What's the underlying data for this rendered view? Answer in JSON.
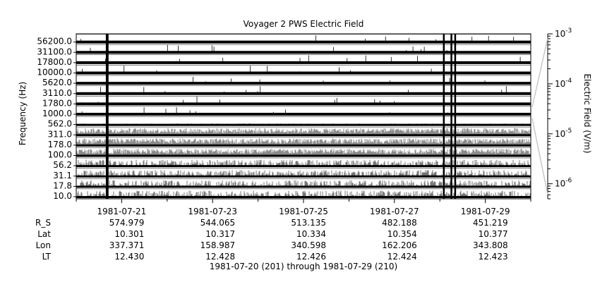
{
  "chart_data": {
    "type": "line",
    "title": "Voyager 2 PWS Electric Field",
    "ylabel": "Frequency (Hz)",
    "colorbar_label": "Electric Field (V/m)",
    "colorbar_scale": "log",
    "colorbar_range": [
      5e-07,
      0.001
    ],
    "colorbar_ticks": [
      {
        "value": 0.001,
        "mantissa": "10",
        "exp": "-3"
      },
      {
        "value": 0.0001,
        "mantissa": "10",
        "exp": "-4"
      },
      {
        "value": 1e-05,
        "mantissa": "10",
        "exp": "-5"
      },
      {
        "value": 1e-06,
        "mantissa": "10",
        "exp": "-6"
      }
    ],
    "x_start": "1981-07-20",
    "x_end": "1981-07-30",
    "x_tick_labels": [
      "1981-07-21",
      "1981-07-23",
      "1981-07-25",
      "1981-07-27",
      "1981-07-29"
    ],
    "x_tick_dates": [
      "1981-07-21",
      "1981-07-23",
      "1981-07-25",
      "1981-07-27",
      "1981-07-29"
    ],
    "x_minor_tick_dates": [
      "1981-07-20",
      "1981-07-22",
      "1981-07-24",
      "1981-07-26",
      "1981-07-28",
      "1981-07-30"
    ],
    "channels": [
      "56200.0",
      "31100.0",
      "17800.0",
      "10000.0",
      "5620.0",
      "3110.0",
      "1780.0",
      "1000.0",
      "562.0",
      "311.0",
      "178.0",
      "100.0",
      "56.2",
      "31.1",
      "17.8",
      "10.0"
    ],
    "spike_dates": [
      "1981-07-20 16:00",
      "1981-07-20 16:30",
      "1981-07-28 02:00",
      "1981-07-28 06:00",
      "1981-07-28 08:00"
    ],
    "grey_band_channels": [
      "311.0",
      "178.0",
      "100.0"
    ],
    "ephemeris": [
      {
        "label": "R_S",
        "values": [
          "574.979",
          "544.065",
          "513.135",
          "482.188",
          "451.219"
        ]
      },
      {
        "label": "Lat",
        "values": [
          "10.301",
          "10.317",
          "10.334",
          "10.354",
          "10.377"
        ]
      },
      {
        "label": "Lon",
        "values": [
          "337.371",
          "158.987",
          "340.598",
          "162.206",
          "343.808"
        ]
      },
      {
        "label": "LT",
        "values": [
          "12.430",
          "12.428",
          "12.426",
          "12.424",
          "12.423"
        ]
      }
    ],
    "footer": "1981-07-20 (201) through 1981-07-29 (210)"
  }
}
